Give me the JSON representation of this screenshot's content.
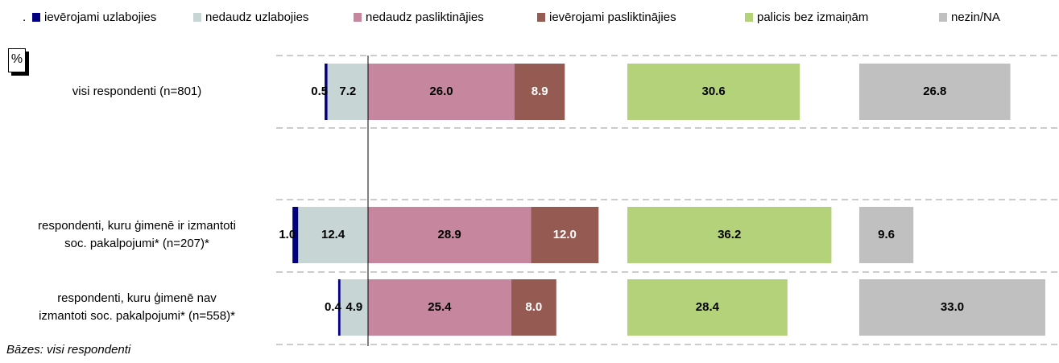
{
  "chart_data": {
    "type": "diverging_bar",
    "note": ".",
    "unit_label": "%",
    "footnote": "Bāzes: visi respondenti",
    "categories": [
      "visi respondenti (n=801)",
      "respondenti, kuru ģimenē ir izmantoti\nsoc. pakalpojumi* (n=207)*",
      "respondenti, kuru ģimenē nav\nizmantoti soc. pakalpojumi* (n=558)*"
    ],
    "series": [
      {
        "name": "ievērojami uzlabojies",
        "color": "#000080",
        "values": [
          0.5,
          1.0,
          0.4
        ],
        "value_labels": [
          "0.5",
          "1.0",
          "0.4"
        ]
      },
      {
        "name": "nedaudz uzlabojies",
        "color": "#c7d6d5",
        "values": [
          7.2,
          12.4,
          4.9
        ],
        "value_labels": [
          "7.2",
          "12.4",
          "4.9"
        ]
      },
      {
        "name": "nedaudz pasliktinājies",
        "color": "#c5869e",
        "values": [
          26.0,
          28.9,
          25.4
        ],
        "value_labels": [
          "26.0",
          "28.9",
          "25.4"
        ]
      },
      {
        "name": "ievērojami pasliktinājies",
        "color": "#955a52",
        "values": [
          8.9,
          12.0,
          8.0
        ],
        "value_labels": [
          "8.9",
          "12.0",
          "8.0"
        ]
      },
      {
        "name": "palicis bez izmaiņām",
        "color": "#b3d27a",
        "values": [
          30.6,
          36.2,
          28.4
        ],
        "value_labels": [
          "30.6",
          "36.2",
          "28.4"
        ]
      },
      {
        "name": "nezin/NA",
        "color": "#c0c0c0",
        "values": [
          26.8,
          9.6,
          33.0
        ],
        "value_labels": [
          "26.8",
          "9.6",
          "33.0"
        ]
      }
    ]
  }
}
